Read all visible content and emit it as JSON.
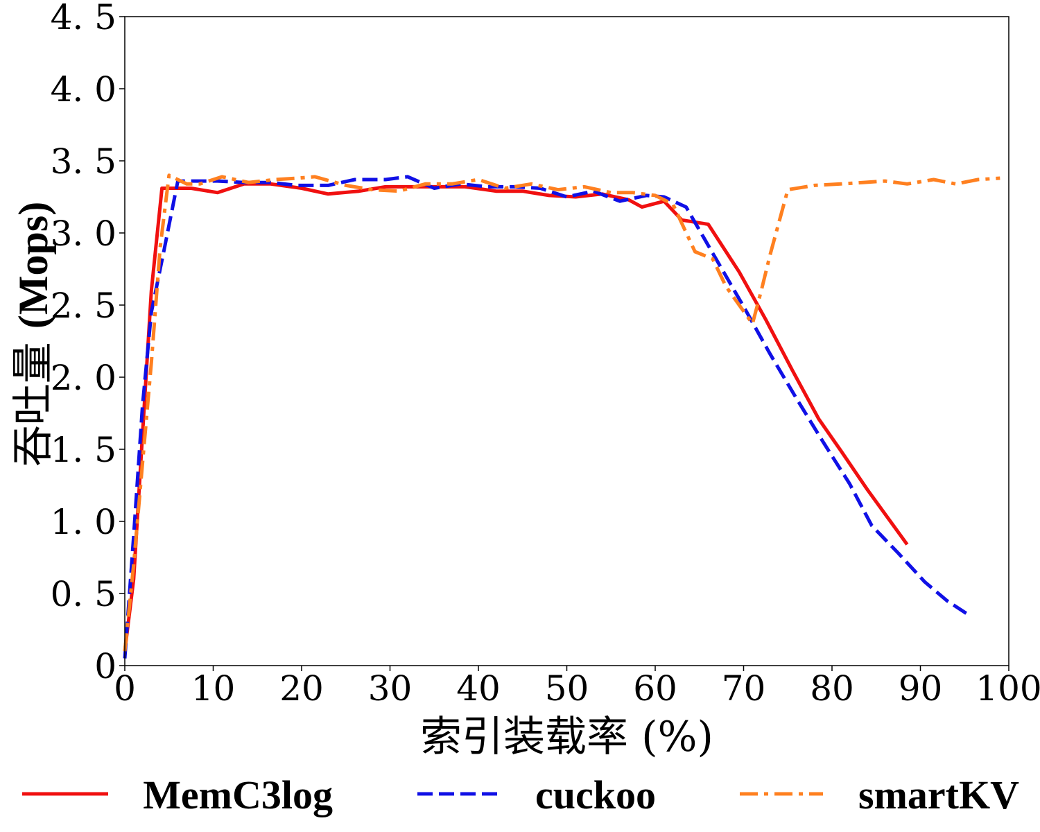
{
  "chart_data": {
    "type": "line",
    "xlabel": "索引装载率 (%)",
    "ylabel": "吞吐量 (Mops)",
    "xlim": [
      0,
      100
    ],
    "ylim": [
      0,
      4.5
    ],
    "xticks": [
      "0",
      "10",
      "20",
      "30",
      "40",
      "50",
      "60",
      "70",
      "80",
      "90",
      "100"
    ],
    "yticks": [
      "0",
      "0. 5",
      "1. 0",
      "1. 5",
      "2. 0",
      "2. 5",
      "3. 0",
      "3. 5",
      "4. 0",
      "4. 5"
    ],
    "legend_position": "bottom",
    "grid": false,
    "series": [
      {
        "name": "MemC3log",
        "color": "#f01010",
        "dash": "solid",
        "x": [
          0,
          1,
          2,
          3,
          4.2,
          5.5,
          7.5,
          10.5,
          13.5,
          16.5,
          20,
          23,
          26.5,
          29.5,
          32.5,
          35.5,
          38.5,
          42,
          45,
          48,
          51,
          54,
          57,
          58.5,
          61,
          63,
          66,
          69.5,
          72.5,
          75.5,
          78.5,
          81,
          84,
          88.5
        ],
        "y": [
          0.1,
          0.6,
          1.6,
          2.6,
          3.31,
          3.31,
          3.31,
          3.28,
          3.34,
          3.34,
          3.31,
          3.27,
          3.29,
          3.32,
          3.32,
          3.32,
          3.32,
          3.29,
          3.29,
          3.26,
          3.25,
          3.27,
          3.23,
          3.18,
          3.22,
          3.09,
          3.06,
          2.73,
          2.4,
          2.05,
          1.71,
          1.49,
          1.22,
          0.84
        ]
      },
      {
        "name": "cuckoo",
        "color": "#1010e6",
        "dash": "dashed",
        "x": [
          0,
          1,
          2,
          3,
          4.5,
          6,
          7.5,
          10.5,
          13.5,
          16.5,
          19.5,
          23,
          26,
          29.5,
          32,
          35,
          38,
          41,
          44,
          47,
          50,
          53,
          56,
          59,
          61,
          63.5,
          66.5,
          70,
          73,
          76,
          79,
          82,
          84.5,
          87.5,
          90.5,
          93,
          95.5
        ],
        "y": [
          0.05,
          0.9,
          1.8,
          2.45,
          2.9,
          3.36,
          3.36,
          3.36,
          3.35,
          3.35,
          3.33,
          3.33,
          3.37,
          3.37,
          3.39,
          3.31,
          3.34,
          3.32,
          3.32,
          3.31,
          3.25,
          3.29,
          3.22,
          3.26,
          3.25,
          3.18,
          2.86,
          2.49,
          2.16,
          1.85,
          1.55,
          1.26,
          0.97,
          0.78,
          0.58,
          0.45,
          0.35
        ]
      },
      {
        "name": "smartKV",
        "color": "#ff8020",
        "dash": "dashdot",
        "x": [
          0,
          1,
          2,
          3,
          4,
          5,
          7,
          8.5,
          11,
          14,
          17,
          19.5,
          21.5,
          25,
          28,
          31,
          34,
          37,
          40,
          43,
          46,
          49,
          52,
          55,
          57.5,
          60,
          62,
          64.5,
          66.5,
          68,
          71,
          72,
          73,
          75,
          78,
          81,
          83.5,
          86,
          88.5,
          91.5,
          94,
          96.5,
          99
        ],
        "y": [
          0.1,
          0.7,
          1.4,
          2.1,
          2.9,
          3.4,
          3.34,
          3.34,
          3.39,
          3.35,
          3.37,
          3.38,
          3.39,
          3.33,
          3.3,
          3.29,
          3.34,
          3.34,
          3.37,
          3.31,
          3.34,
          3.3,
          3.32,
          3.28,
          3.28,
          3.26,
          3.2,
          2.87,
          2.82,
          2.63,
          2.37,
          2.6,
          2.85,
          3.3,
          3.33,
          3.34,
          3.35,
          3.36,
          3.34,
          3.37,
          3.34,
          3.37,
          3.38
        ]
      }
    ]
  }
}
